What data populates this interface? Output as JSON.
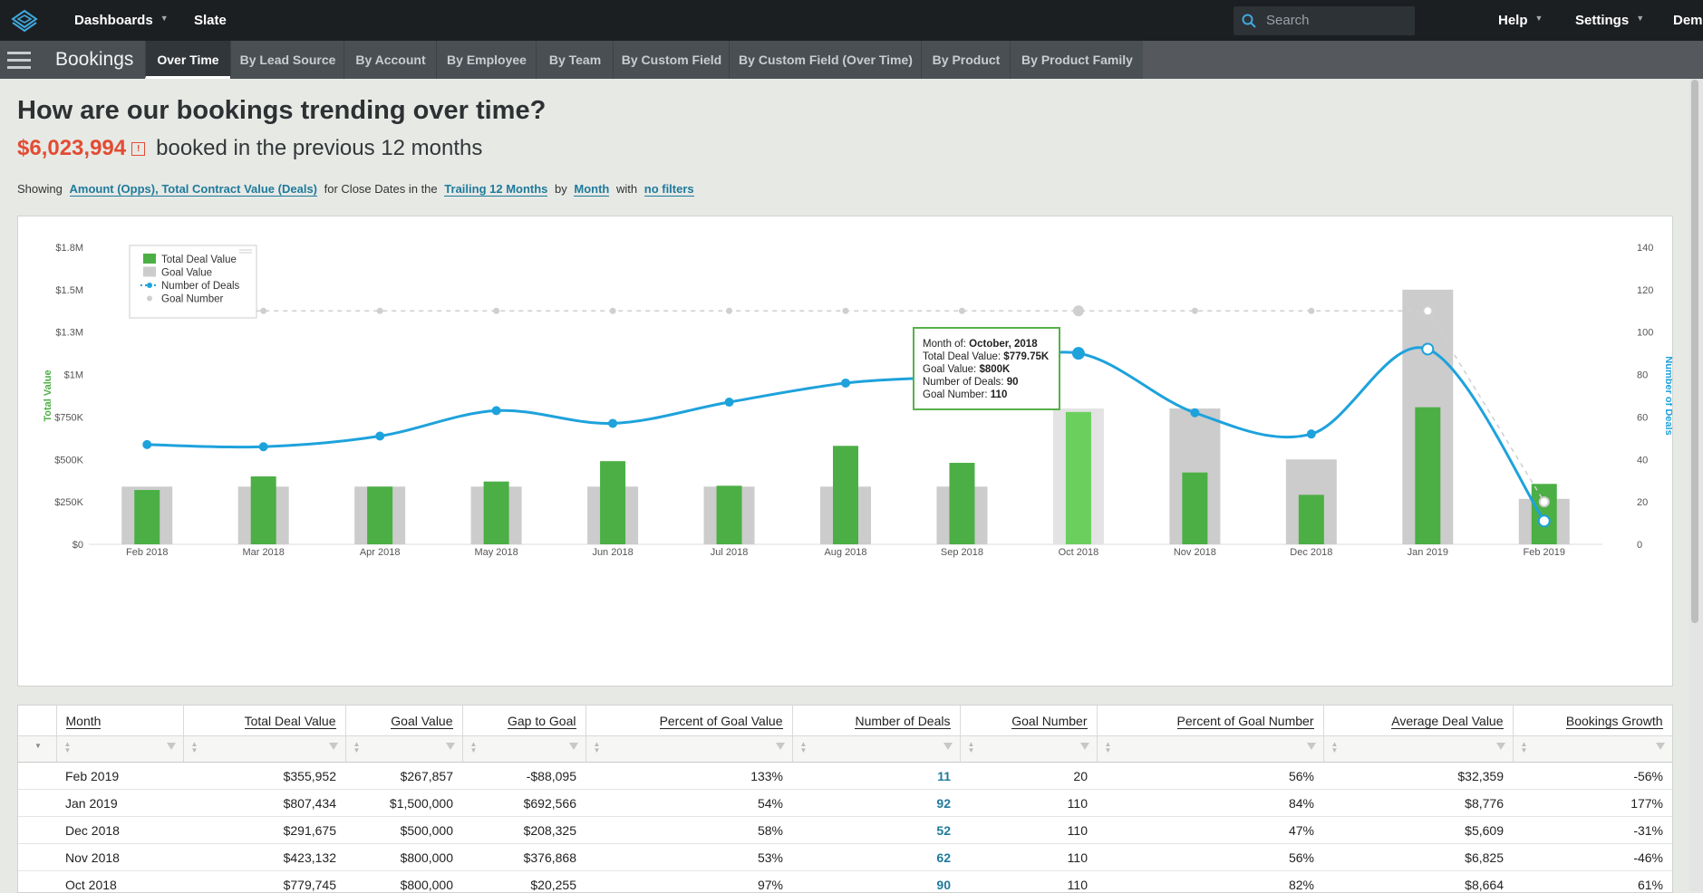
{
  "topbar": {
    "nav": [
      {
        "label": "Dashboards",
        "caret": true
      },
      {
        "label": "Slate",
        "caret": false
      }
    ],
    "search_placeholder": "Search",
    "right": [
      {
        "label": "Help",
        "caret": true
      },
      {
        "label": "Settings",
        "caret": true
      },
      {
        "label": "Demo",
        "caret": false
      }
    ]
  },
  "subnav": {
    "title": "Bookings",
    "tabs": [
      "Over Time",
      "By Lead Source",
      "By Account",
      "By Employee",
      "By Team",
      "By Custom Field",
      "By Custom Field (Over Time)",
      "By Product",
      "By Product Family"
    ],
    "active_tab": "Over Time"
  },
  "header": {
    "question": "How are our bookings trending over time?",
    "amount": "$6,023,994",
    "warn_glyph": "!",
    "subtitle": "booked in the previous 12 months"
  },
  "showing": {
    "prefix": "Showing",
    "metric": "Amount (Opps), Total Contract Value (Deals)",
    "mid1": "for Close Dates in the",
    "range": "Trailing 12 Months",
    "mid2": "by",
    "period": "Month",
    "mid3": "with",
    "filters": "no filters"
  },
  "chart_data": {
    "type": "bar",
    "categories": [
      "Feb 2018",
      "Mar 2018",
      "Apr 2018",
      "May 2018",
      "Jun 2018",
      "Jul 2018",
      "Aug 2018",
      "Sep 2018",
      "Oct 2018",
      "Nov 2018",
      "Dec 2018",
      "Jan 2019",
      "Feb 2019"
    ],
    "series": [
      {
        "name": "Total Deal Value",
        "axis": "left",
        "color": "#4caf45",
        "values": [
          320000,
          400000,
          340000,
          370000,
          490000,
          345000,
          580000,
          480000,
          779745,
          423132,
          291675,
          807434,
          355952
        ]
      },
      {
        "name": "Goal Value",
        "axis": "left",
        "color": "#cccccc",
        "values": [
          340000,
          340000,
          340000,
          340000,
          340000,
          340000,
          340000,
          340000,
          800000,
          800000,
          500000,
          1500000,
          267857
        ]
      },
      {
        "name": "Number of Deals",
        "axis": "right",
        "type": "line",
        "color": "#1ea2dc",
        "values": [
          47,
          46,
          51,
          63,
          57,
          67,
          76,
          80,
          90,
          62,
          52,
          92,
          11
        ]
      },
      {
        "name": "Goal Number",
        "axis": "right",
        "type": "line",
        "dashed": true,
        "color": "#cccccc",
        "values": [
          110,
          110,
          110,
          110,
          110,
          110,
          110,
          110,
          110,
          110,
          110,
          110,
          20
        ]
      }
    ],
    "ylabel": "Total Value",
    "y2label": "Number of Deals",
    "y_ticks": [
      "$0",
      "$250K",
      "$500K",
      "$750K",
      "$1M",
      "$1.3M",
      "$1.5M",
      "$1.8M"
    ],
    "ylim": [
      0,
      1750000
    ],
    "y2_ticks": [
      "0",
      "20",
      "40",
      "60",
      "80",
      "100",
      "120",
      "140"
    ],
    "y2lim": [
      0,
      140
    ],
    "legend_position": "top-left",
    "highlight_index": 8
  },
  "tooltip": {
    "month_label": "Month of:",
    "month": "October, 2018",
    "tdv_label": "Total Deal Value:",
    "tdv": "$779.75K",
    "goal_label": "Goal Value:",
    "goal": "$800K",
    "deals_label": "Number of Deals:",
    "deals": "90",
    "goalnum_label": "Goal Number:",
    "goalnum": "110"
  },
  "table": {
    "columns": [
      "Month",
      "Total Deal Value",
      "Goal Value",
      "Gap to Goal",
      "Percent of Goal Value",
      "Number of Deals",
      "Goal Number",
      "Percent of Goal Number",
      "Average Deal Value",
      "Bookings Growth"
    ],
    "rows": [
      [
        "Feb 2019",
        "$355,952",
        "$267,857",
        "-$88,095",
        "133%",
        "11",
        "20",
        "56%",
        "$32,359",
        "-56%"
      ],
      [
        "Jan 2019",
        "$807,434",
        "$1,500,000",
        "$692,566",
        "54%",
        "92",
        "110",
        "84%",
        "$8,776",
        "177%"
      ],
      [
        "Dec 2018",
        "$291,675",
        "$500,000",
        "$208,325",
        "58%",
        "52",
        "110",
        "47%",
        "$5,609",
        "-31%"
      ],
      [
        "Nov 2018",
        "$423,132",
        "$800,000",
        "$376,868",
        "53%",
        "62",
        "110",
        "56%",
        "$6,825",
        "-46%"
      ],
      [
        "Oct 2018",
        "$779,745",
        "$800,000",
        "$20,255",
        "97%",
        "90",
        "110",
        "82%",
        "$8,664",
        "61%"
      ]
    ]
  }
}
